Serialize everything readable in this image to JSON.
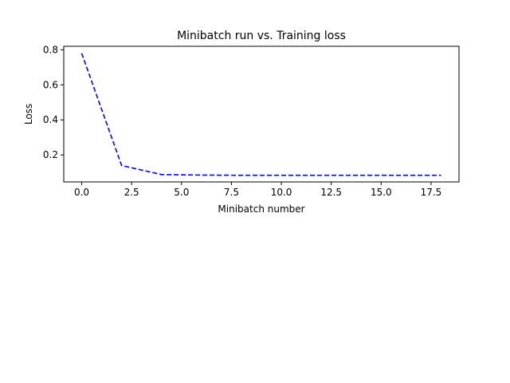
{
  "chart_data": {
    "type": "line",
    "title": "Minibatch run vs. Training loss",
    "xlabel": "Minibatch number",
    "ylabel": "Loss",
    "xlim": [
      -0.9,
      18.9
    ],
    "ylim": [
      0.046,
      0.82
    ],
    "xticks": [
      0.0,
      2.5,
      5.0,
      7.5,
      10.0,
      12.5,
      15.0,
      17.5
    ],
    "xtick_labels": [
      "0.0",
      "2.5",
      "5.0",
      "7.5",
      "10.0",
      "12.5",
      "15.0",
      "17.5"
    ],
    "yticks": [
      0.2,
      0.4,
      0.6,
      0.8
    ],
    "ytick_labels": [
      "0.2",
      "0.4",
      "0.6",
      "0.8"
    ],
    "grid": false,
    "series": [
      {
        "style": "dashed",
        "color": "#0000ff",
        "x": [
          0,
          2,
          4,
          6,
          8,
          10,
          12,
          14,
          16,
          18
        ],
        "y": [
          0.78,
          0.14,
          0.088,
          0.085,
          0.084,
          0.084,
          0.084,
          0.084,
          0.084,
          0.084
        ]
      }
    ]
  }
}
